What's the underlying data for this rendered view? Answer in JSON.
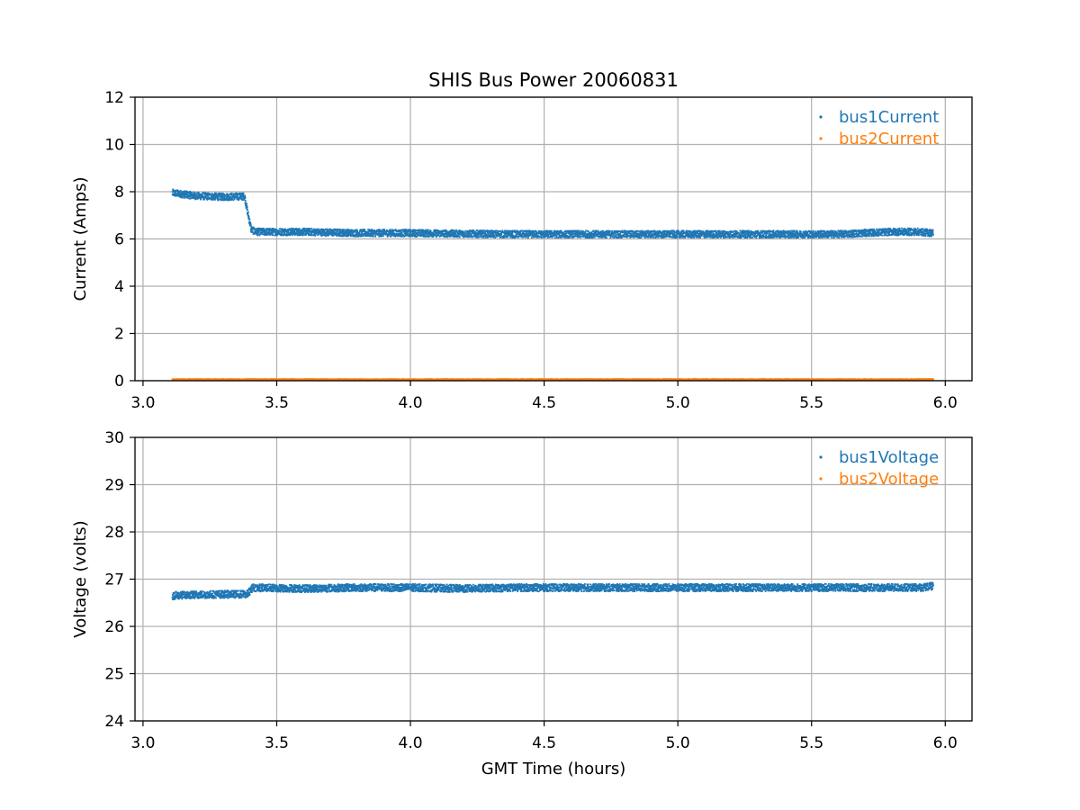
{
  "chart_data": [
    {
      "type": "scatter",
      "title": "SHIS Bus Power 20060831",
      "xlabel": "",
      "ylabel": "Current (Amps)",
      "xlim": [
        2.97,
        6.1
      ],
      "ylim": [
        0,
        12
      ],
      "x_ticks": [
        3.0,
        3.5,
        4.0,
        4.5,
        5.0,
        5.5,
        6.0
      ],
      "x_tick_labels": [
        "3.0",
        "3.5",
        "4.0",
        "4.5",
        "5.0",
        "5.5",
        "6.0"
      ],
      "y_ticks": [
        0,
        2,
        4,
        6,
        8,
        10,
        12
      ],
      "y_tick_labels": [
        "0",
        "2",
        "4",
        "6",
        "8",
        "10",
        "12"
      ],
      "grid": true,
      "legend_position": "top-right",
      "series": [
        {
          "name": "bus1Current",
          "color": "#1f77b4",
          "x": [
            3.11,
            3.2,
            3.3,
            3.38,
            3.39,
            3.405,
            3.42,
            3.6,
            3.8,
            4.0,
            4.2,
            4.4,
            4.6,
            4.8,
            5.0,
            5.2,
            5.4,
            5.6,
            5.8,
            5.9,
            5.955
          ],
          "y": [
            7.95,
            7.82,
            7.78,
            7.8,
            7.2,
            6.4,
            6.3,
            6.3,
            6.25,
            6.25,
            6.22,
            6.2,
            6.2,
            6.2,
            6.2,
            6.2,
            6.2,
            6.2,
            6.3,
            6.3,
            6.25
          ],
          "spread": 0.15
        },
        {
          "name": "bus2Current",
          "color": "#ff7f0e",
          "x": [
            3.11,
            3.5,
            4.0,
            4.5,
            5.0,
            5.5,
            5.955
          ],
          "y": [
            0.05,
            0.05,
            0.05,
            0.05,
            0.05,
            0.05,
            0.05
          ],
          "spread": 0.02
        }
      ]
    },
    {
      "type": "scatter",
      "title": "",
      "xlabel": "GMT Time (hours)",
      "ylabel": "Voltage (volts)",
      "xlim": [
        2.97,
        6.1
      ],
      "ylim": [
        24,
        30
      ],
      "x_ticks": [
        3.0,
        3.5,
        4.0,
        4.5,
        5.0,
        5.5,
        6.0
      ],
      "x_tick_labels": [
        "3.0",
        "3.5",
        "4.0",
        "4.5",
        "5.0",
        "5.5",
        "6.0"
      ],
      "y_ticks": [
        24,
        25,
        26,
        27,
        28,
        29,
        30
      ],
      "y_tick_labels": [
        "24",
        "25",
        "26",
        "27",
        "28",
        "29",
        "30"
      ],
      "grid": true,
      "legend_position": "top-right",
      "series": [
        {
          "name": "bus1Voltage",
          "color": "#1f77b4",
          "x": [
            3.11,
            3.2,
            3.3,
            3.39,
            3.41,
            3.6,
            3.8,
            4.0,
            4.2,
            4.4,
            4.6,
            4.8,
            5.0,
            5.2,
            5.4,
            5.6,
            5.8,
            5.9,
            5.955
          ],
          "y": [
            26.65,
            26.67,
            26.68,
            26.68,
            26.82,
            26.8,
            26.82,
            26.82,
            26.8,
            26.82,
            26.82,
            26.82,
            26.82,
            26.82,
            26.82,
            26.82,
            26.82,
            26.82,
            26.85
          ],
          "spread": 0.08
        },
        {
          "name": "bus2Voltage",
          "color": "#ff7f0e",
          "x": [],
          "y": [],
          "spread": 0
        }
      ]
    }
  ]
}
